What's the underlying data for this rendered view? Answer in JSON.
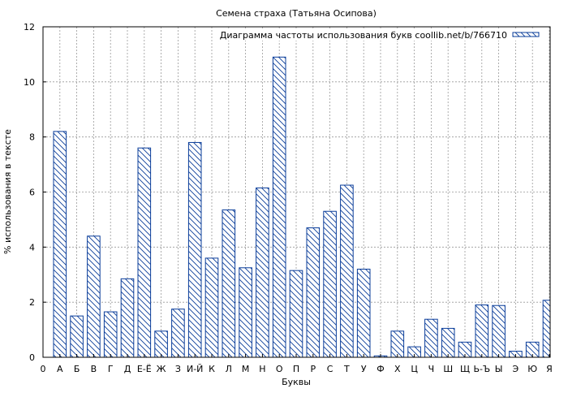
{
  "chart_data": {
    "type": "bar",
    "title": "Семена страха (Татьяна Осипова)",
    "xlabel": "Буквы",
    "ylabel": "% использования в тексте",
    "ylim": [
      0,
      12
    ],
    "yticks": [
      0,
      2,
      4,
      6,
      8,
      10,
      12
    ],
    "grid": true,
    "legend_position": "top-right",
    "x_origin_label": "0",
    "categories": [
      "А",
      "Б",
      "В",
      "Г",
      "Д",
      "Е-Ё",
      "Ж",
      "З",
      "И-Й",
      "К",
      "Л",
      "М",
      "Н",
      "О",
      "П",
      "Р",
      "С",
      "Т",
      "У",
      "Ф",
      "Х",
      "Ц",
      "Ч",
      "Ш",
      "Щ",
      "Ь-Ъ",
      "Ы",
      "Э",
      "Ю",
      "Я"
    ],
    "series": [
      {
        "name": "Диаграмма частоты использования букв coollib.net/b/766710",
        "values": [
          8.2,
          1.5,
          4.4,
          1.65,
          2.85,
          7.6,
          0.95,
          1.75,
          7.8,
          3.6,
          5.35,
          3.25,
          6.15,
          10.9,
          3.15,
          4.7,
          5.3,
          6.25,
          3.2,
          0.05,
          0.95,
          0.38,
          1.38,
          1.05,
          0.55,
          1.9,
          1.88,
          0.22,
          0.55,
          2.07
        ]
      }
    ],
    "colors": {
      "bar_stroke": "#0a3d9a",
      "grid": "#999999"
    }
  }
}
